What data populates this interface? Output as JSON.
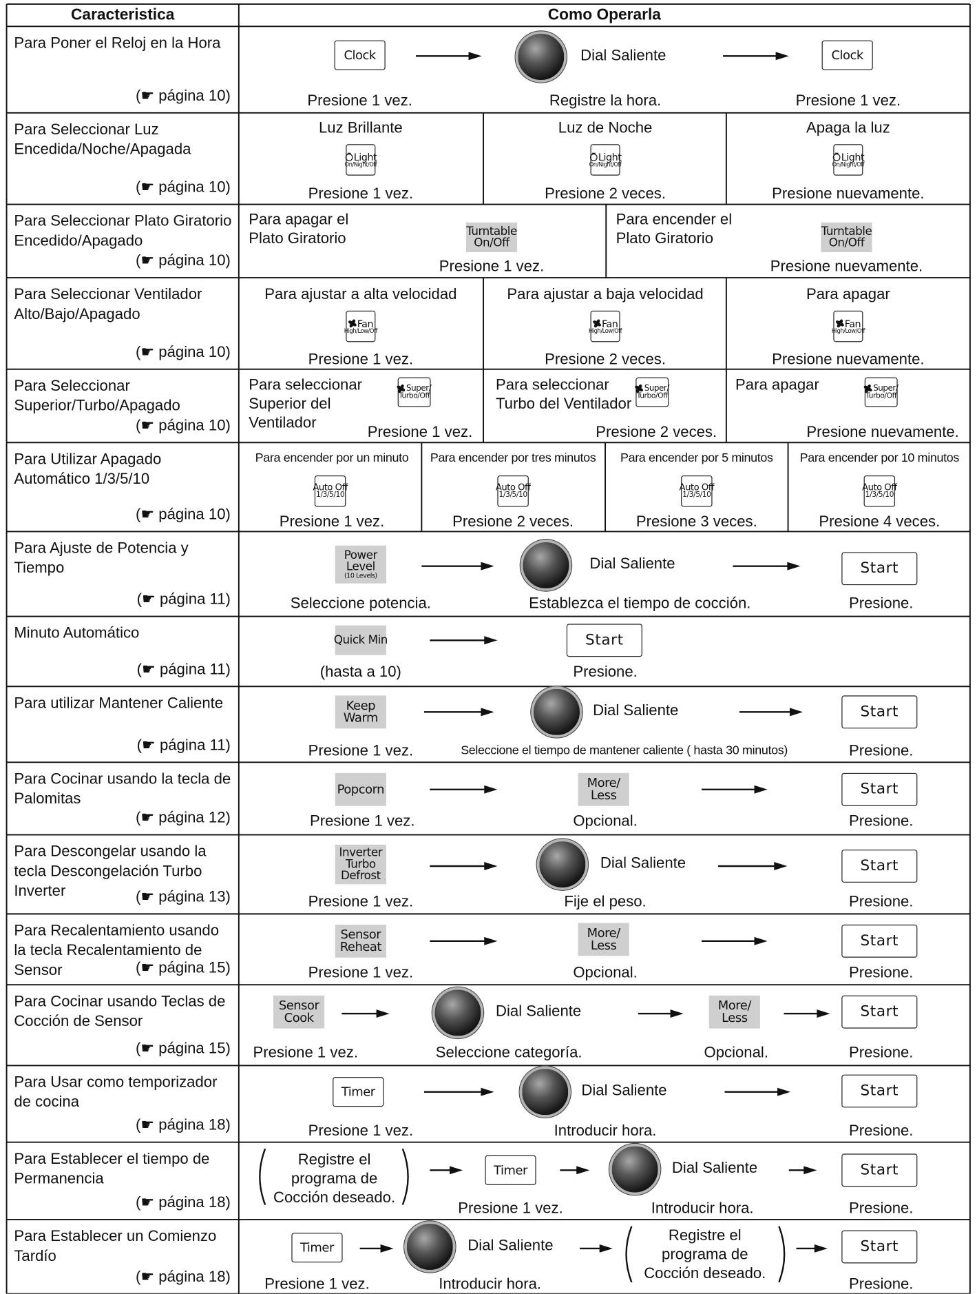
{
  "header": {
    "feature": "Caracteristica",
    "operation": "Como Operarla"
  },
  "rows": [
    {
      "feature": "Para Poner el Reloj en la Hora",
      "page": "(☛ página 10)",
      "items": [
        {
          "button": [
            "Clock"
          ]
        },
        {
          "dial": "Dial Saliente"
        },
        {
          "button": [
            "Clock"
          ]
        },
        "Presione 1 vez.",
        "Registre la hora.",
        "Presione 1 vez."
      ]
    },
    {
      "feature": "Para Seleccionar Luz Encedida/Noche/Apagada",
      "page": "(☛ página 10)",
      "items": [
        "Luz Brillante",
        "Luz de Noche",
        "Apaga la luz",
        {
          "button": [
            "Light",
            "On/Night/Off"
          ]
        },
        {
          "button": [
            "Light",
            "On/Night/Off"
          ]
        },
        {
          "button": [
            "Light",
            "On/Night/Off"
          ]
        },
        "Presione 1 vez.",
        "Presione 2 veces.",
        "Presione nuevamente."
      ]
    },
    {
      "feature": "Para Seleccionar Plato Giratorio Encedido/Apagado",
      "page": "(☛ página 10)",
      "items": [
        "Para apagar el Plato Giratorio",
        {
          "button": [
            "Turntable",
            "On/Off"
          ]
        },
        "Presione 1 vez.",
        "Para encender el Plato Giratorio",
        {
          "button": [
            "Turntable",
            "On/Off"
          ]
        },
        "Presione nuevamente."
      ]
    },
    {
      "feature": "Para Seleccionar Ventilador Alto/Bajo/Apagado",
      "page": "(☛ página 10)",
      "items": [
        "Para ajustar a alta velocidad",
        "Para ajustar a baja velocidad",
        "Para apagar",
        {
          "button": [
            "Fan",
            "High/Low/Off"
          ]
        },
        {
          "button": [
            "Fan",
            "High/Low/Off"
          ]
        },
        {
          "button": [
            "Fan",
            "High/Low/Off"
          ]
        },
        "Presione 1 vez.",
        "Presione 2 veces.",
        "Presione nuevamente."
      ]
    },
    {
      "feature": "Para Seleccionar Superior/Turbo/Apagado",
      "page": "(☛ página 10)",
      "items": [
        "Para seleccionar Superior del Ventilador",
        {
          "button": [
            "Super/",
            "Turbo/Off"
          ]
        },
        "Presione 1 vez.",
        "Para seleccionar Turbo del Ventilador",
        {
          "button": [
            "Super/",
            "Turbo/Off"
          ]
        },
        "Presione 2 veces.",
        "Para apagar",
        {
          "button": [
            "Super/",
            "Turbo/Off"
          ]
        },
        "Presione nuevamente."
      ]
    },
    {
      "feature": "Para Utilizar Apagado Automático 1/3/5/10",
      "page": "(☛ página 10)",
      "items": [
        "Para encender por un minuto",
        "Para encender por tres minutos",
        "Para encender por 5 minutos",
        "Para encender por 10 minutos",
        {
          "button": [
            "Auto Off",
            "1/3/5/10"
          ]
        },
        {
          "button": [
            "Auto Off",
            "1/3/5/10"
          ]
        },
        {
          "button": [
            "Auto Off",
            "1/3/5/10"
          ]
        },
        {
          "button": [
            "Auto Off",
            "1/3/5/10"
          ]
        },
        "Presione 1 vez.",
        "Presione 2 veces.",
        "Presione 3 veces.",
        "Presione 4 veces."
      ]
    },
    {
      "feature": "Para Ajuste de Potencia y Tiempo",
      "page": "(☛ página 11)",
      "items": [
        {
          "button": [
            "Power",
            "Level",
            "(10 Levels)"
          ]
        },
        {
          "dial": "Dial Saliente"
        },
        {
          "button": [
            "Start"
          ]
        },
        "Seleccione potencia.",
        "Establezca el tiempo de cocción.",
        "Presione."
      ]
    },
    {
      "feature": "Minuto Automático",
      "page": "(☛ página 11)",
      "items": [
        {
          "button": [
            "Quick Min"
          ]
        },
        {
          "button": [
            "Start"
          ]
        },
        "(hasta a 10)",
        "Presione."
      ]
    },
    {
      "feature": "Para utilizar Mantener Caliente",
      "page": "(☛ página 11)",
      "items": [
        {
          "button": [
            "Keep",
            "Warm"
          ]
        },
        {
          "dial": "Dial Saliente"
        },
        {
          "button": [
            "Start"
          ]
        },
        "Presione 1 vez.",
        "Seleccione el tiempo de mantener caliente ( hasta 30 minutos)",
        "Presione."
      ]
    },
    {
      "feature": "Para Cocinar usando la tecla de Palomitas",
      "page": "(☛ página 12)",
      "items": [
        {
          "button": [
            "Popcorn"
          ]
        },
        {
          "button": [
            "More/",
            "Less"
          ]
        },
        {
          "button": [
            "Start"
          ]
        },
        "Presione 1 vez.",
        "Opcional.",
        "Presione."
      ]
    },
    {
      "feature": "Para Descongelar usando la tecla Descongelación Turbo Inverter",
      "page": "(☛ página 13)",
      "items": [
        {
          "button": [
            "Inverter",
            "Turbo",
            "Defrost"
          ]
        },
        {
          "dial": "Dial Saliente"
        },
        {
          "button": [
            "Start"
          ]
        },
        "Presione 1 vez.",
        "Fije el peso.",
        "Presione."
      ]
    },
    {
      "feature": "Para Recalentamiento usando la tecla Recalentamiento de Sensor",
      "page": "(☛ página 15)",
      "items": [
        {
          "button": [
            "Sensor",
            "Reheat"
          ]
        },
        {
          "button": [
            "More/",
            "Less"
          ]
        },
        {
          "button": [
            "Start"
          ]
        },
        "Presione 1 vez.",
        "Opcional.",
        "Presione."
      ]
    },
    {
      "feature": "Para Cocinar usando Teclas de Cocción de Sensor",
      "page": "(☛ página 15)",
      "items": [
        {
          "button": [
            "Sensor",
            "Cook"
          ]
        },
        {
          "dial": "Dial Saliente"
        },
        {
          "button": [
            "More/",
            "Less"
          ]
        },
        {
          "button": [
            "Start"
          ]
        },
        "Presione 1 vez.",
        "Seleccione categoría.",
        "Opcional.",
        "Presione."
      ]
    },
    {
      "feature": "Para Usar como temporizador de cocina",
      "page": "(☛ página 18)",
      "items": [
        {
          "button": [
            "Timer"
          ]
        },
        {
          "dial": "Dial Saliente"
        },
        {
          "button": [
            "Start"
          ]
        },
        "Presione 1 vez.",
        "Introducir hora.",
        "Presione."
      ]
    },
    {
      "feature": "Para Establecer el tiempo de Permanencia",
      "page": "(☛ página 18)",
      "items": [
        "Registre el programa de Cocción deseado.",
        {
          "button": [
            "Timer"
          ]
        },
        {
          "dial": "Dial Saliente"
        },
        {
          "button": [
            "Start"
          ]
        },
        "Presione 1 vez.",
        "Introducir hora.",
        "Presione."
      ]
    },
    {
      "feature": "Para Establecer un Comienzo Tardío",
      "page": "(☛ página 18)",
      "items": [
        {
          "button": [
            "Timer"
          ]
        },
        {
          "dial": "Dial Saliente"
        },
        "Registre el programa de Cocción deseado.",
        {
          "button": [
            "Start"
          ]
        },
        "Presione 1 vez.",
        "Introducir hora.",
        "Presione."
      ]
    }
  ]
}
